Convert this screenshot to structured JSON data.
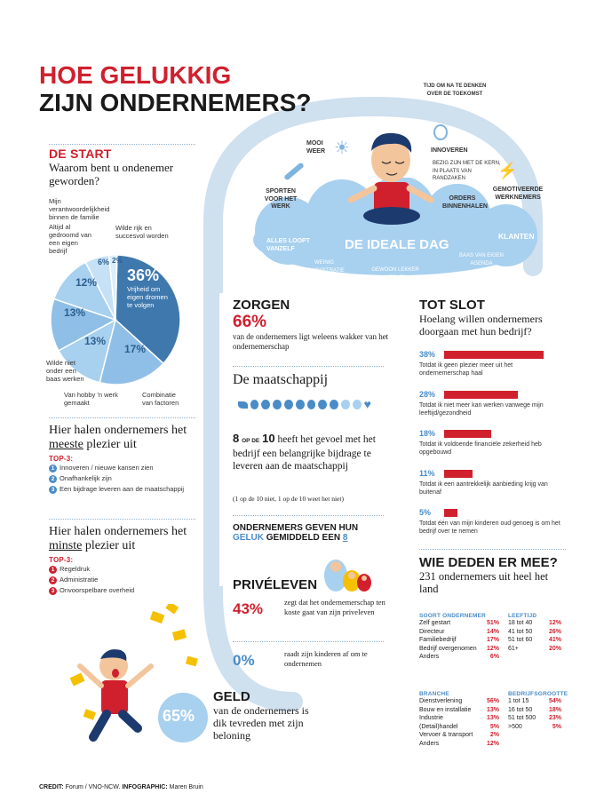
{
  "title": {
    "line1": "HOE GELUKKIG",
    "line2": "ZIJN ONDERNEMERS?"
  },
  "start": {
    "heading": "DE START",
    "question": "Waarom bent u ondenemer geworden?",
    "pie": [
      {
        "pct": "36%",
        "label": "Vrijheid om eigen dromen te volgen",
        "value": 36
      },
      {
        "pct": "17%",
        "label": "Combinatie van factoren",
        "value": 17
      },
      {
        "pct": "13%",
        "label": "Van hobby 'n werk gemaakt",
        "value": 13
      },
      {
        "pct": "13%",
        "label": "Wilde niet onder een baas werken",
        "value": 13
      },
      {
        "pct": "12%",
        "label": "Altijd al gedroomd van een eigen bedrijf",
        "value": 12
      },
      {
        "pct": "6%",
        "label": "Mijn verantwoordelijkheid binnen de familie",
        "value": 6
      },
      {
        "pct": "2%",
        "label": "Wilde rijk en succesvol worden",
        "value": 2
      }
    ]
  },
  "meeste": {
    "pre": "Hier halen ondernemers het ",
    "key": "meeste",
    "post": " plezier uit",
    "top3": "TOP-3:",
    "items": [
      "Innoveren / nieuwe kansen zien",
      "Onafhankelijk zijn",
      "Een bijdrage leveren aan de maatschappij"
    ]
  },
  "minste": {
    "pre": "Hier halen ondernemers het ",
    "key": "minste",
    "post": " plezier uit",
    "top3": "TOP-3:",
    "items": [
      "Regeldruk",
      "Administratie",
      "Onvoorspelbare overheid"
    ]
  },
  "ideal_day": {
    "title": "DE IDEALE DAG",
    "labels": {
      "tijd": "TIJD OM NA TE DENKEN OVER DE TOEKOMST",
      "weer": "MOOI WEER",
      "innoveren": "INNOVEREN",
      "bezig": "BEZIG ZIJN MET DE KERN, IN PLAATS VAN RANDZAKEN",
      "sporten": "SPORTEN VOOR HET WERK",
      "orders": "ORDERS BINNENHALEN",
      "gemotiveerde": "GEMOTIVEERDE WERKNEMERS",
      "alles": "ALLES LOOPT VANZELF",
      "klanten": "KLANTEN",
      "weinig": "WEINIG ADMINISTRATIE",
      "gewoon": "GEWOON LEKKER WERKEN",
      "baas": "BAAS VAN EIGEN AGENDA"
    }
  },
  "zorgen": {
    "heading": "ZORGEN",
    "pct": "66%",
    "text": "van de ondernemers ligt weleens wakker van het ondernemerschap"
  },
  "maatschappij": {
    "heading": "De maatschappij",
    "ratio_a": "8",
    "ratio_mid": "OP DE",
    "ratio_b": "10",
    "text": " heeft het gevoel met het bedrijf een belangrijke bijdrage te leveren aan de maatschappij",
    "note": "(1 op de 10 niet, 1 op de 10 weet het niet)"
  },
  "geluk": {
    "line1": "ONDERNEMERS GEVEN HUN",
    "geluk_word": "GELUK",
    "line2_mid": " GEMIDDELD EEN ",
    "score": "8"
  },
  "prive": {
    "heading": "PRIVÉLEVEN",
    "pct1": "43%",
    "text1": "zegt dat het ondernemerschap ten koste gaat van zijn priveleven",
    "pct2": "0%",
    "text2": "raadt zijn kinderen af om te ondernemen"
  },
  "geld": {
    "heading": "GELD",
    "pct": "65%",
    "text": "van de ondernemers is dik tevreden met zijn beloning"
  },
  "totslot": {
    "heading": "TOT SLOT",
    "question": "Hoelang willen ondernemers doorgaan met hun bedrijf?",
    "bars": [
      {
        "pct": "38%",
        "value": 38,
        "text": "Totdat ik geen plezier meer uit het ondernemerschap haal"
      },
      {
        "pct": "28%",
        "value": 28,
        "text": "Totdat ik niet meer kan werken vanwege mijn leeftijd/gezondheid"
      },
      {
        "pct": "18%",
        "value": 18,
        "text": "Totdat ik voldoende financiële zekerheid heb opgebouwd"
      },
      {
        "pct": "11%",
        "value": 11,
        "text": "Totdat ik een aantrekkelijk aanbieding krijg van buitenaf"
      },
      {
        "pct": "5%",
        "value": 5,
        "text": "Totdat één van mijn kinderen oud genoeg is om het bedrijf over te nemen"
      }
    ]
  },
  "wie": {
    "heading": "WIE DEDEN ER MEE?",
    "sub": "231 ondernemers uit heel het land",
    "soort": {
      "head": "SOORT ONDERNEMER",
      "rows": [
        [
          "Zelf gestart",
          "51%"
        ],
        [
          "Directeur",
          "14%"
        ],
        [
          "Familiebedrijf",
          "17%"
        ],
        [
          "Bedrijf overgenomen",
          "12%"
        ],
        [
          "Anders",
          "6%"
        ]
      ]
    },
    "leeftijd": {
      "head": "LEEFTIJD",
      "rows": [
        [
          "18 tot 40",
          "12%"
        ],
        [
          "41 tot 50",
          "26%"
        ],
        [
          "51 tot 60",
          "41%"
        ],
        [
          "61+",
          "20%"
        ]
      ]
    },
    "branche": {
      "head": "BRANCHE",
      "rows": [
        [
          "Dienstverlening",
          "56%"
        ],
        [
          "Bouw en installatie",
          "13%"
        ],
        [
          "Industrie",
          "13%"
        ],
        [
          "(Detail)handel",
          "5%"
        ],
        [
          "Vervoer & transport",
          "2%"
        ],
        [
          "Anders",
          "12%"
        ]
      ]
    },
    "grootte": {
      "head": "BEDRIJFSGROOTTE",
      "rows": [
        [
          "1 tot 15",
          "54%"
        ],
        [
          "16 tot 50",
          "18%"
        ],
        [
          "51 tot 500",
          "23%"
        ],
        [
          ">500",
          "5%"
        ]
      ]
    }
  },
  "credit": {
    "label1": "CREDIT:",
    "text1": " Forum / VNO-NCW. ",
    "label2": "INFOGRAPHIC:",
    "text2": " Maren Bruin"
  },
  "colors": {
    "red": "#d0202e",
    "blue": "#4a8cc7",
    "cloud": "#a8d0ef",
    "pie_dark": "#3e78ad"
  }
}
